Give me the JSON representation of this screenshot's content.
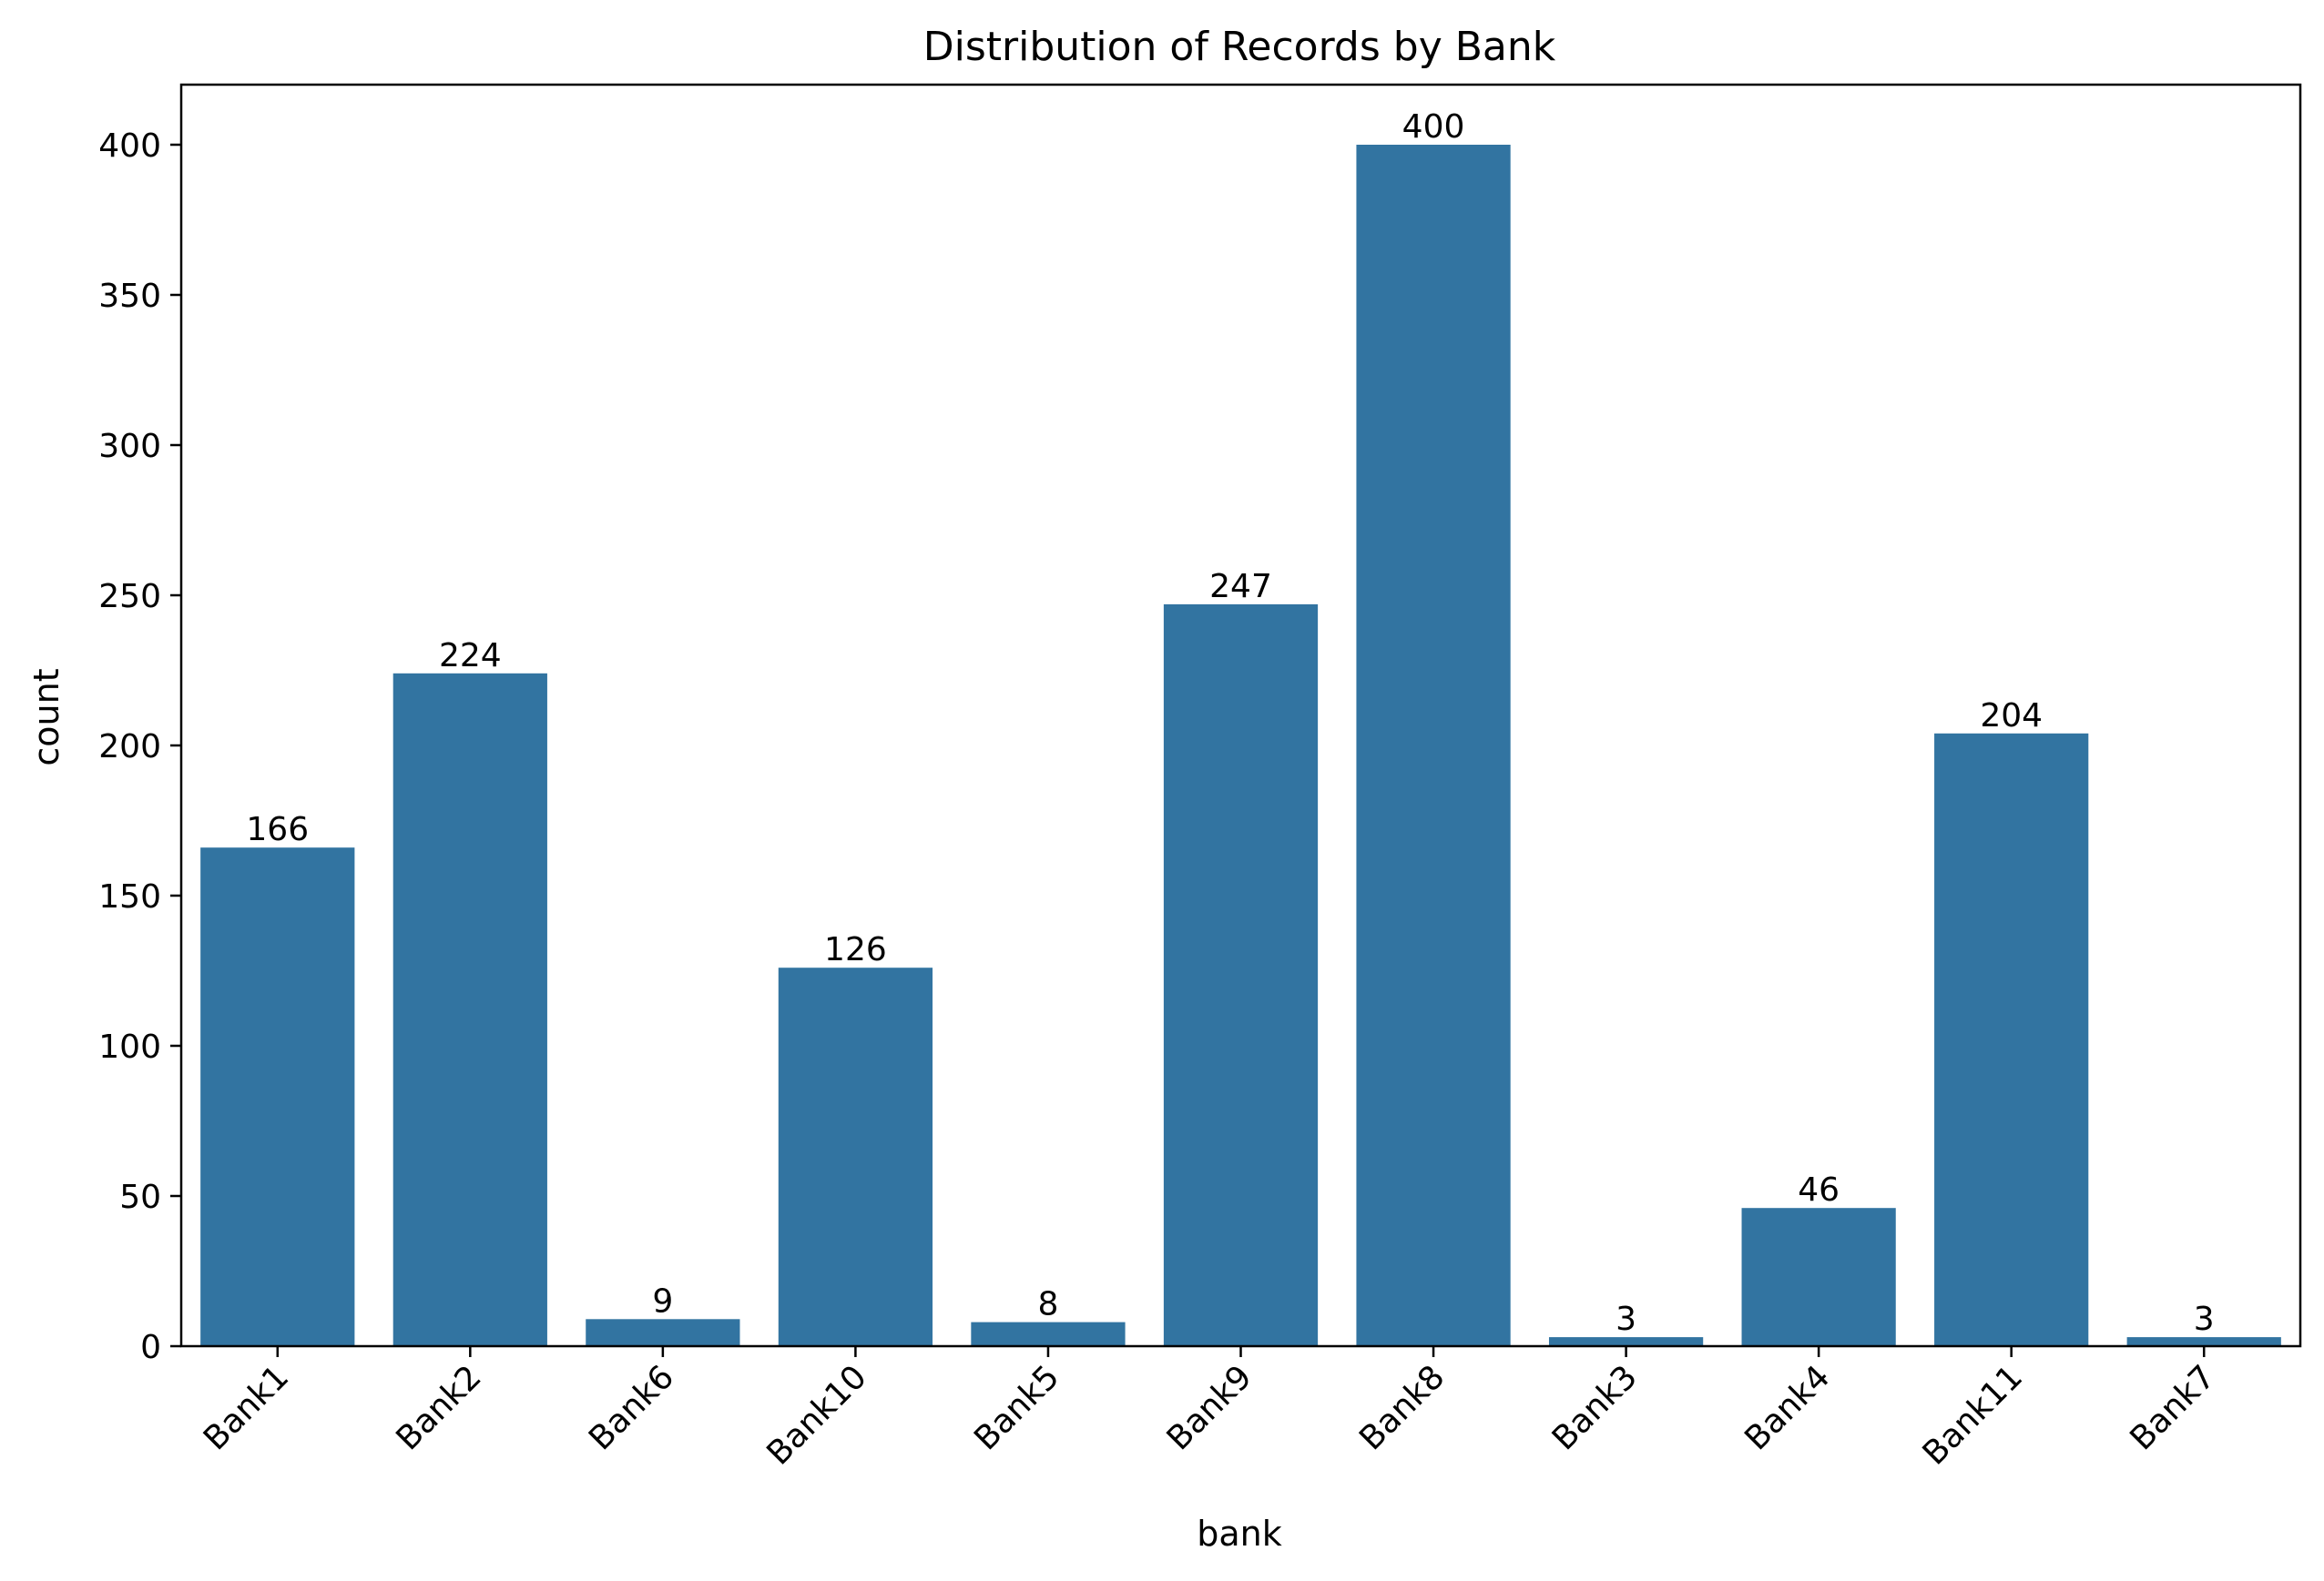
{
  "chart_data": {
    "type": "bar",
    "title": "Distribution of Records by Bank",
    "xlabel": "bank",
    "ylabel": "count",
    "categories": [
      "Bank1",
      "Bank2",
      "Bank6",
      "Bank10",
      "Bank5",
      "Bank9",
      "Bank8",
      "Bank3",
      "Bank4",
      "Bank11",
      "Bank7"
    ],
    "values": [
      166,
      224,
      9,
      126,
      8,
      247,
      400,
      3,
      46,
      204,
      3
    ],
    "ylim": [
      0,
      420
    ],
    "yticks": [
      0,
      50,
      100,
      150,
      200,
      250,
      300,
      350,
      400
    ],
    "bar_color": "#3274a1",
    "grid": false,
    "data_labels": true,
    "xtick_rotation": 45
  }
}
